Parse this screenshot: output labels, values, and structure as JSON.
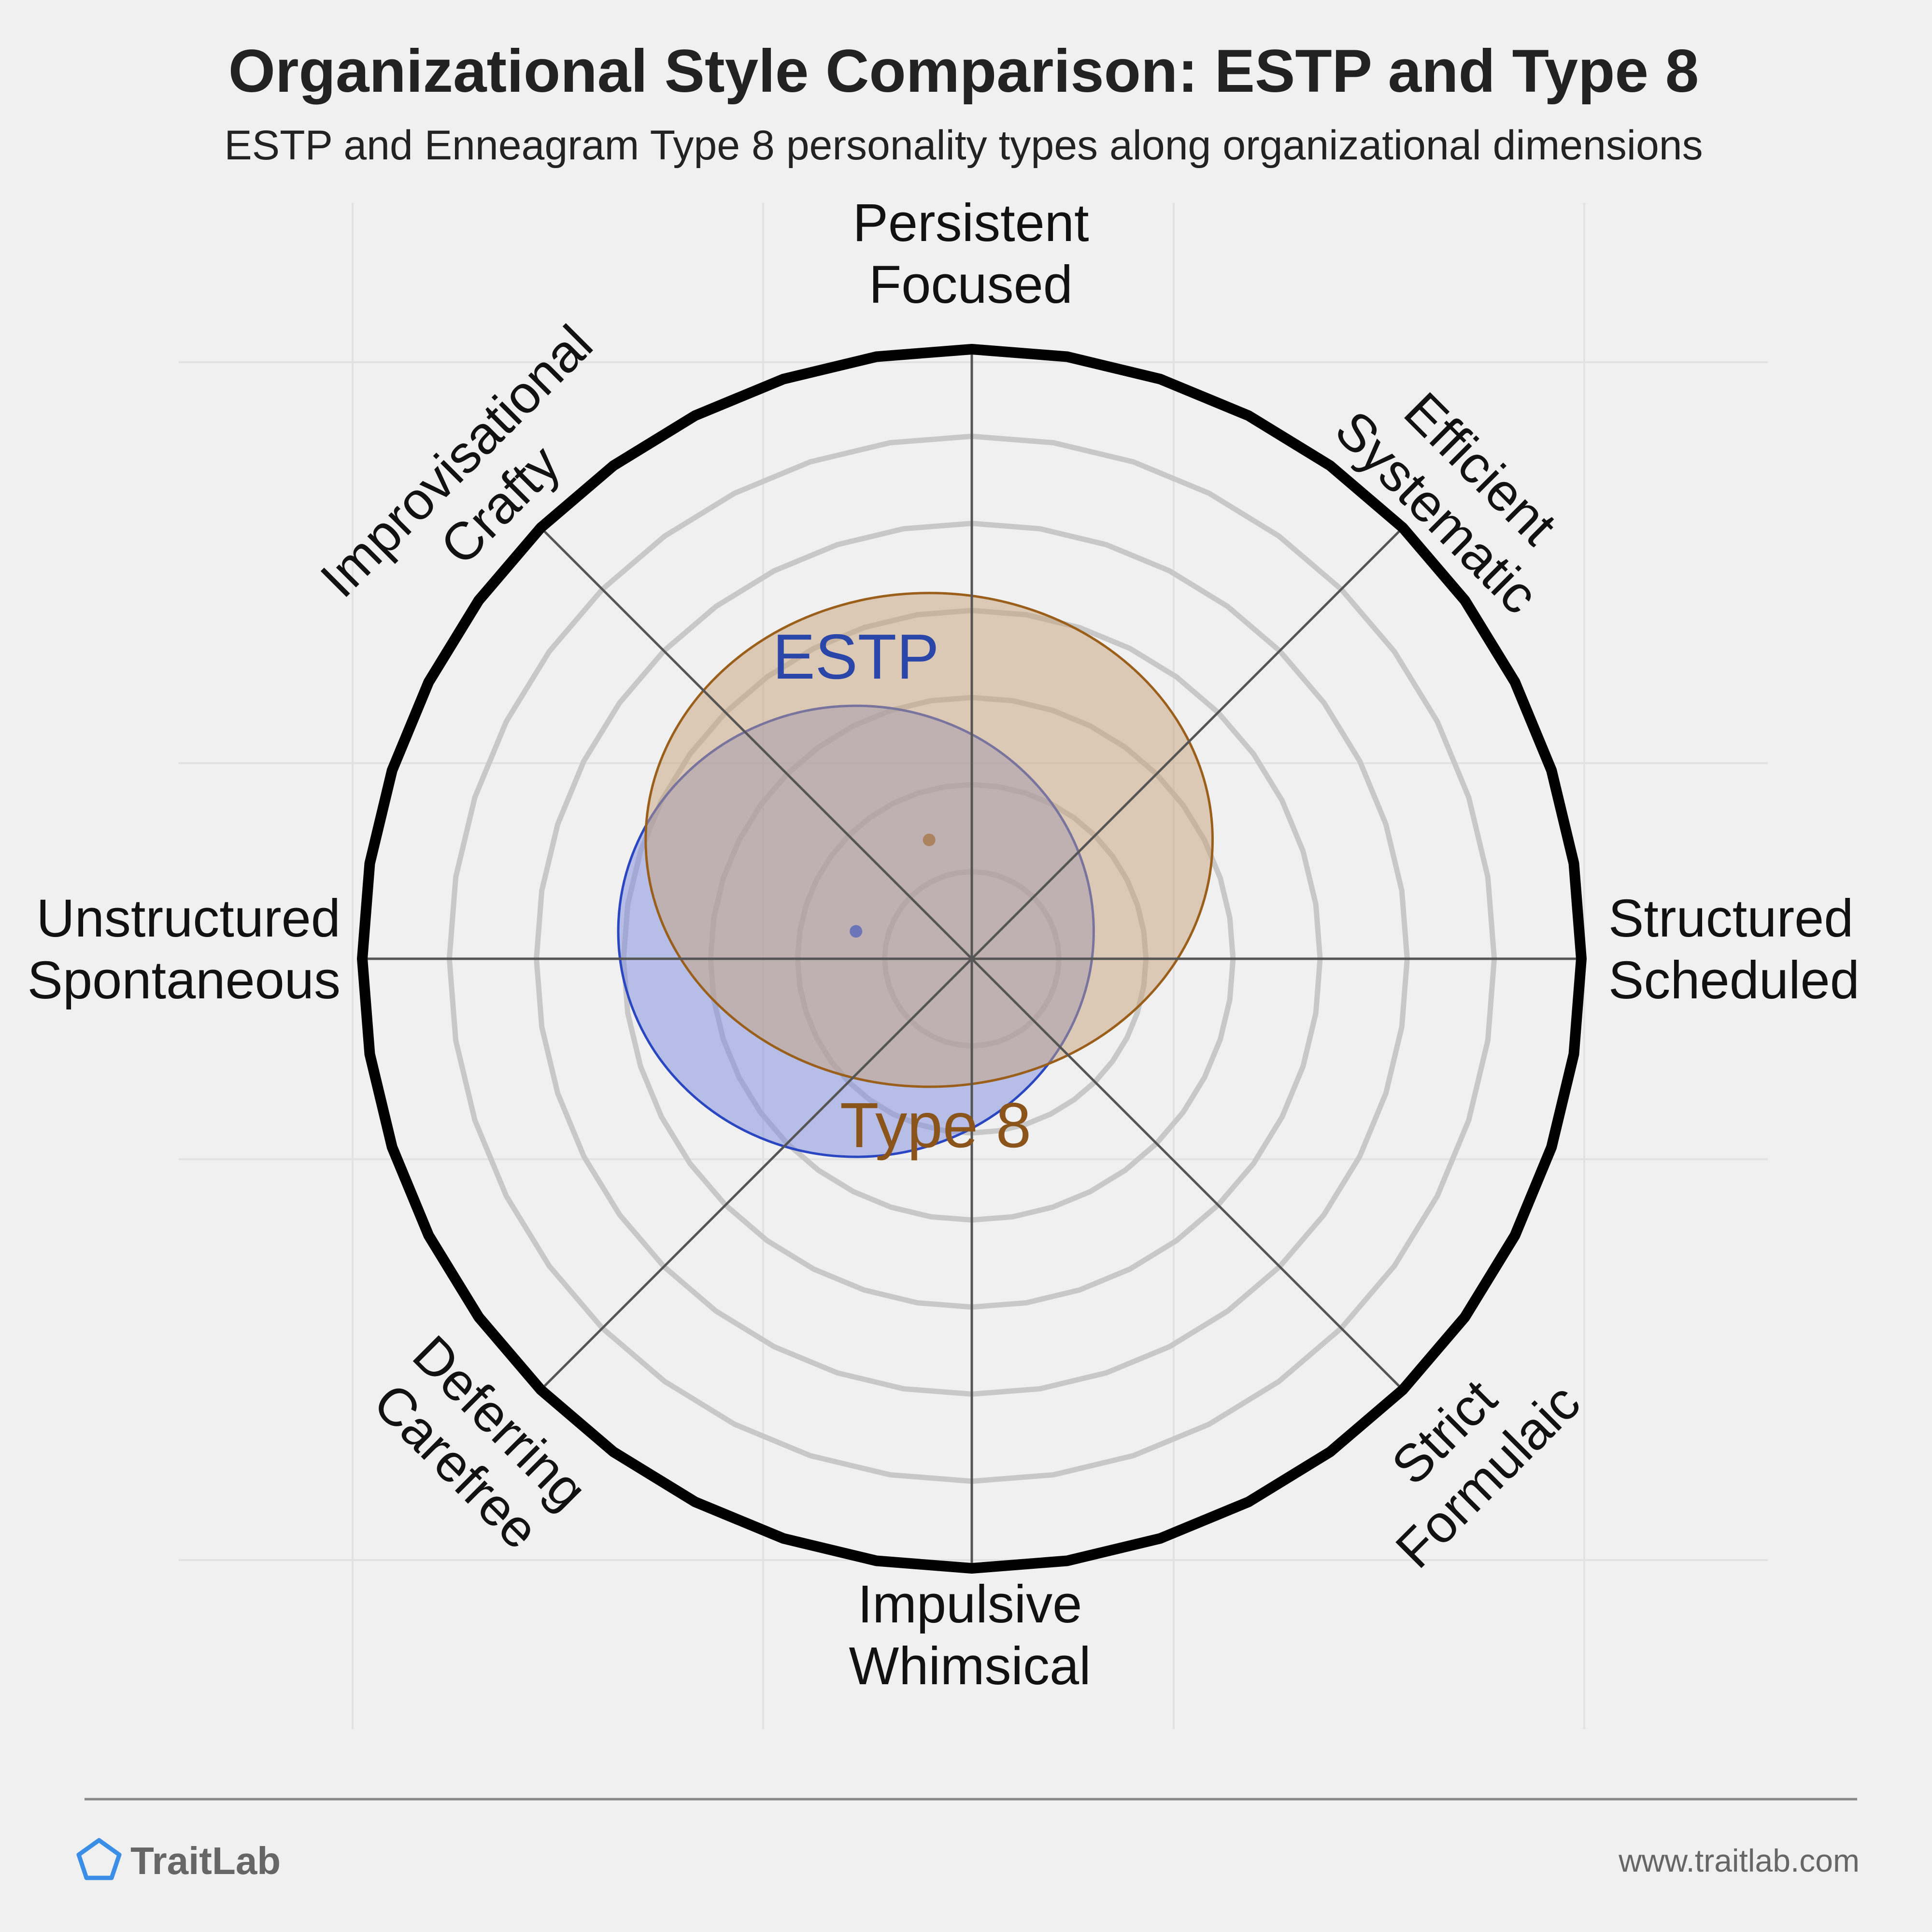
{
  "title": "Organizational Style Comparison: ESTP and Type 8",
  "subtitle": "ESTP and Enneagram Type 8 personality types along organizational dimensions",
  "footer": {
    "brand": "TraitLab",
    "url": "www.traitlab.com"
  },
  "chart_data": {
    "type": "radar-overlap",
    "axes": [
      {
        "direction": "top",
        "lines": [
          "Persistent",
          "Focused"
        ]
      },
      {
        "direction": "top-right",
        "lines": [
          "Efficient",
          "Systematic"
        ]
      },
      {
        "direction": "right",
        "lines": [
          "Structured",
          "Scheduled"
        ]
      },
      {
        "direction": "bottom-right",
        "lines": [
          "Strict",
          "Formulaic"
        ]
      },
      {
        "direction": "bottom",
        "lines": [
          "Impulsive",
          "Whimsical"
        ]
      },
      {
        "direction": "bottom-left",
        "lines": [
          "Deferring",
          "Carefree"
        ]
      },
      {
        "direction": "left",
        "lines": [
          "Unstructured",
          "Spontaneous"
        ]
      },
      {
        "direction": "top-left",
        "lines": [
          "Improvisational",
          "Crafty"
        ]
      }
    ],
    "grid_rings": 6,
    "grid": true,
    "series": [
      {
        "name": "ESTP",
        "center": {
          "x": -0.19,
          "y": 0.045
        },
        "radius": {
          "x": 0.39,
          "y": 0.37
        },
        "fill": "#7b8be0",
        "stroke": "#2a46c0",
        "label_color": "#2a46a8"
      },
      {
        "name": "Type 8",
        "center": {
          "x": -0.07,
          "y": 0.195
        },
        "radius": {
          "x": 0.465,
          "y": 0.405
        },
        "fill": "#c8a27a",
        "stroke": "#9a5f1a",
        "label_color": "#8a541a"
      }
    ]
  },
  "colors": {
    "background": "#f0f0f0",
    "outer_ring": "#000000",
    "grid_ring": "#c8c8c8",
    "axis_line": "#555555",
    "brand_icon": "#3a8ee6"
  }
}
